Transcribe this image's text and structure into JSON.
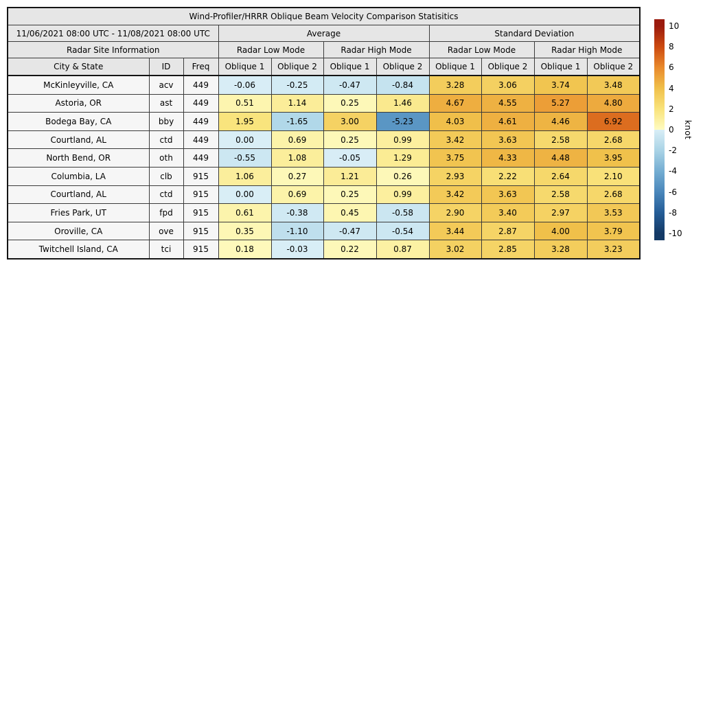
{
  "chart_data": {
    "type": "table",
    "title": "Wind-Profiler/HRRR Oblique Beam Velocity Comparison Statisitics",
    "date_range": "11/06/2021 08:00 UTC - 11/08/2021 08:00 UTC",
    "group_headers": {
      "average": "Average",
      "std_deviation": "Standard Deviation"
    },
    "mode_headers": {
      "site_info": "Radar Site Information",
      "low_mode": "Radar Low Mode",
      "high_mode": "Radar High Mode"
    },
    "col_headers": {
      "city": "City & State",
      "id": "ID",
      "freq": "Freq",
      "oblique1": "Oblique 1",
      "oblique2": "Oblique 2"
    },
    "value_columns": [
      "avg_low_oblique1",
      "avg_low_oblique2",
      "avg_high_oblique1",
      "avg_high_oblique2",
      "std_low_oblique1",
      "std_low_oblique2",
      "std_high_oblique1",
      "std_high_oblique2"
    ],
    "rows": [
      {
        "city": "McKinleyville, CA",
        "id": "acv",
        "freq": "449",
        "values": [
          -0.06,
          -0.25,
          -0.47,
          -0.84,
          3.28,
          3.06,
          3.74,
          3.48
        ]
      },
      {
        "city": "Astoria, OR",
        "id": "ast",
        "freq": "449",
        "values": [
          0.51,
          1.14,
          0.25,
          1.46,
          4.67,
          4.55,
          5.27,
          4.8
        ]
      },
      {
        "city": "Bodega Bay, CA",
        "id": "bby",
        "freq": "449",
        "values": [
          1.95,
          -1.65,
          3.0,
          -5.23,
          4.03,
          4.61,
          4.46,
          6.92
        ]
      },
      {
        "city": "Courtland, AL",
        "id": "ctd",
        "freq": "449",
        "values": [
          0.0,
          0.69,
          0.25,
          0.99,
          3.42,
          3.63,
          2.58,
          2.68
        ]
      },
      {
        "city": "North Bend, OR",
        "id": "oth",
        "freq": "449",
        "values": [
          -0.55,
          1.08,
          -0.05,
          1.29,
          3.75,
          4.33,
          4.48,
          3.95
        ]
      },
      {
        "city": "Columbia, LA",
        "id": "clb",
        "freq": "915",
        "values": [
          1.06,
          0.27,
          1.21,
          0.26,
          2.93,
          2.22,
          2.64,
          2.1
        ]
      },
      {
        "city": "Courtland, AL",
        "id": "ctd",
        "freq": "915",
        "values": [
          0.0,
          0.69,
          0.25,
          0.99,
          3.42,
          3.63,
          2.58,
          2.68
        ]
      },
      {
        "city": "Fries Park, UT",
        "id": "fpd",
        "freq": "915",
        "values": [
          0.61,
          -0.38,
          0.45,
          -0.58,
          2.9,
          3.4,
          2.97,
          3.53
        ]
      },
      {
        "city": "Oroville, CA",
        "id": "ove",
        "freq": "915",
        "values": [
          0.35,
          -1.1,
          -0.47,
          -0.54,
          3.44,
          2.87,
          4.0,
          3.79
        ]
      },
      {
        "city": "Twitchell Island, CA",
        "id": "tci",
        "freq": "915",
        "values": [
          0.18,
          -0.03,
          0.22,
          0.87,
          3.02,
          2.85,
          3.28,
          3.23
        ]
      }
    ],
    "colorbar": {
      "label": "knot",
      "vmin": -10,
      "vmax": 10,
      "ticks": [
        "10",
        "8",
        "6",
        "4",
        "2",
        "0",
        "-2",
        "-4",
        "-6",
        "-8",
        "-10"
      ]
    },
    "colors": {
      "positive_anchors": [
        "#fefbc1",
        "#f9e37b",
        "#f0c04a",
        "#e98a2c",
        "#cc4a10",
        "#9b1b0e"
      ],
      "negative_anchors": [
        "#d9eef6",
        "#a9d3e6",
        "#74add2",
        "#4a87bb",
        "#255d97",
        "#143a66"
      ],
      "anchor_step": 2,
      "header_bg": "#e6e6e6",
      "label_cell_bg": "#f6f6f6",
      "grid_border": "#3a3a3a",
      "outer_border": "#141414",
      "text": "#000000"
    }
  }
}
